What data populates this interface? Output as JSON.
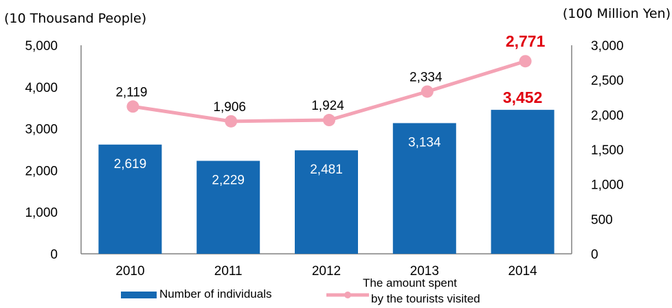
{
  "chart_data": {
    "type": "bar+line",
    "left_unit_label": "(10 Thousand People)",
    "right_unit_label": "(100 Million Yen)",
    "categories": [
      "2010",
      "2011",
      "2012",
      "2013",
      "2014"
    ],
    "series": [
      {
        "name": "Number of individuals",
        "type": "bar",
        "axis": "left",
        "values": [
          2619,
          2229,
          2481,
          3134,
          3452
        ],
        "labels": [
          "2,619",
          "2,229",
          "2,481",
          "3,134",
          "3,452"
        ],
        "highlight_index": 4
      },
      {
        "name": "The amount spent by the tourists visited",
        "name_lines": [
          "The amount spent",
          "by the tourists visited"
        ],
        "type": "line",
        "axis": "right",
        "values": [
          2119,
          1906,
          1924,
          2334,
          2771
        ],
        "labels": [
          "2,119",
          "1,906",
          "1,924",
          "2,334",
          "2,771"
        ],
        "highlight_index": 4
      }
    ],
    "left_axis": {
      "min": 0,
      "max": 5000,
      "ticks": [
        "0",
        "1,000",
        "2,000",
        "3,000",
        "4,000",
        "5,000"
      ]
    },
    "right_axis": {
      "min": 0,
      "max": 3000,
      "ticks": [
        "0",
        "500",
        "1,000",
        "1,500",
        "2,000",
        "2,500",
        "3,000"
      ]
    },
    "grid": false,
    "legend_position": "bottom",
    "colors": {
      "bar": "#1569b2",
      "line": "#f4a3b5",
      "highlight": "#e0000f",
      "axis": "#808080"
    }
  }
}
